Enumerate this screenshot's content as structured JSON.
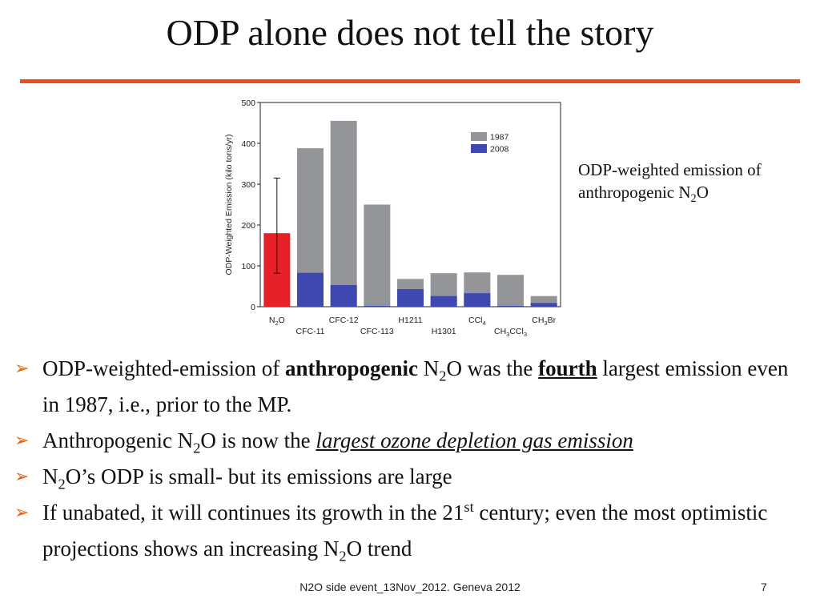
{
  "slide": {
    "title": "ODP alone does not tell the story",
    "annotation_line1": "ODP-weighted emission of",
    "annotation_line2_pre": "anthropogenic N",
    "annotation_line2_sub": "2",
    "annotation_line2_post": "O"
  },
  "bullets": [
    {
      "p1": "ODP-weighted-emission of ",
      "p2_bold": "anthropogenic",
      "p3": " N",
      "p3_sub": "2",
      "p4": "O was the ",
      "p5_bold_underline": "fourth",
      "p6": " largest emission even in 1987, i.e., prior to the MP."
    },
    {
      "p1": "Anthropogenic N",
      "p1_sub": "2",
      "p2": "O is now the ",
      "p3_italic_underline": "largest ozone depletion gas emission"
    },
    {
      "p1": "N",
      "p1_sub": "2",
      "p2": "O’s ODP is small- but its emissions are large"
    },
    {
      "p1": "If unabated, it will continues its growth in the 21",
      "p1_sup": "st",
      "p2": " century; even the most optimistic projections shows an increasing N",
      "p2_sub": "2",
      "p3": "O trend"
    }
  ],
  "footer": {
    "text": "N2O side event_13Nov_2012. Geneva 2012",
    "page_number": "7"
  },
  "chart_data": {
    "type": "bar",
    "ylabel": "ODP-Weighted Emission (kilo tons/yr)",
    "ylim": [
      0,
      500
    ],
    "yticks": [
      "0",
      "100",
      "200",
      "300",
      "400",
      "500"
    ],
    "ytick_values": [
      0,
      100,
      200,
      300,
      400,
      500
    ],
    "grid": false,
    "legend_placement": "top-right",
    "categories": [
      {
        "base": "N",
        "sub": "2",
        "post": "O",
        "row": 0
      },
      {
        "base": "CFC-11",
        "sub": "",
        "post": "",
        "row": 1
      },
      {
        "base": "CFC-12",
        "sub": "",
        "post": "",
        "row": 0
      },
      {
        "base": "CFC-113",
        "sub": "",
        "post": "",
        "row": 1
      },
      {
        "base": "H1211",
        "sub": "",
        "post": "",
        "row": 0
      },
      {
        "base": "H1301",
        "sub": "",
        "post": "",
        "row": 1
      },
      {
        "base": "CCl",
        "sub": "4",
        "post": "",
        "row": 0
      },
      {
        "base": "CH",
        "sub": "3",
        "post": "CCl",
        "sub2": "3",
        "row": 1
      },
      {
        "base": "CH",
        "sub": "3",
        "post": "Br",
        "row": 0
      }
    ],
    "series": [
      {
        "name": "1987",
        "color": "#939598",
        "values": [
          null,
          388,
          455,
          250,
          68,
          82,
          84,
          78,
          26
        ]
      },
      {
        "name": "2008",
        "color": "#3f48b0",
        "values": [
          null,
          83,
          53,
          2,
          43,
          26,
          33,
          2,
          9
        ]
      }
    ],
    "n2o": {
      "value": 180,
      "error_low": 82,
      "error_high": 315,
      "color": "#e62127"
    }
  }
}
